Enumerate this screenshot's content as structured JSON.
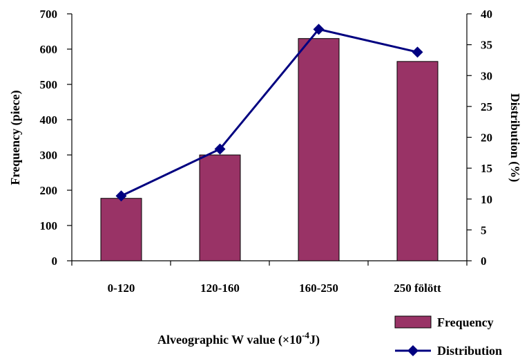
{
  "chart_data": {
    "type": "bar",
    "categories": [
      "0-120",
      "120-160",
      "160-250",
      "250 fölött"
    ],
    "series": [
      {
        "name": "Frequency",
        "type": "bar",
        "axis": "left",
        "color": "#993366",
        "values": [
          177,
          300,
          630,
          565
        ]
      },
      {
        "name": "Distribution",
        "type": "line",
        "axis": "right",
        "color": "#000080",
        "marker": "diamond",
        "values": [
          10.5,
          18.1,
          37.5,
          33.8
        ]
      }
    ],
    "xlabel": "Alveographic W value (×10",
    "xlabel_sup": "-4",
    "xlabel_suffix": "J)",
    "ylabel": "Frequency (piece)",
    "y2label": "Distribution (%)",
    "ylim": [
      0,
      700
    ],
    "y2lim": [
      0,
      40
    ],
    "yticks": [
      0,
      100,
      200,
      300,
      400,
      500,
      600,
      700
    ],
    "y2ticks": [
      0,
      5,
      10,
      15,
      20,
      25,
      30,
      35,
      40
    ],
    "grid": false,
    "legend_position": "bottom-right"
  }
}
